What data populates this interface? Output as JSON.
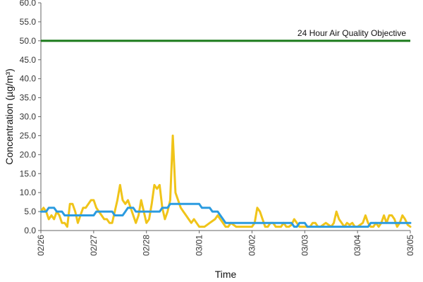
{
  "chart_data": {
    "type": "line",
    "xlabel": "Time",
    "ylabel": "Concentration (µg/m³)",
    "ylim": [
      0,
      60
    ],
    "y_ticks": [
      "0.0",
      "5.0",
      "10.0",
      "15.0",
      "20.0",
      "25.0",
      "30.0",
      "35.0",
      "40.0",
      "45.0",
      "50.0",
      "55.0",
      "60.0"
    ],
    "x_ticks": [
      "02/26",
      "02/27",
      "02/28",
      "03/01",
      "03/02",
      "03/03",
      "03/04",
      "03/05"
    ],
    "grid": false,
    "objective": {
      "label": "24 Hour Air Quality Objective",
      "value": 50,
      "color": "#1a7a1a"
    },
    "series": [
      {
        "color": "#f0c419",
        "points": [
          [
            0.0,
            5
          ],
          [
            0.05,
            6
          ],
          [
            0.1,
            5
          ],
          [
            0.15,
            3
          ],
          [
            0.2,
            4
          ],
          [
            0.25,
            3
          ],
          [
            0.3,
            5
          ],
          [
            0.35,
            4
          ],
          [
            0.4,
            2
          ],
          [
            0.45,
            2
          ],
          [
            0.5,
            1
          ],
          [
            0.55,
            7
          ],
          [
            0.6,
            7
          ],
          [
            0.65,
            5
          ],
          [
            0.7,
            2
          ],
          [
            0.75,
            4
          ],
          [
            0.8,
            6
          ],
          [
            0.85,
            6
          ],
          [
            0.9,
            7
          ],
          [
            0.95,
            8
          ],
          [
            1.0,
            8
          ],
          [
            1.05,
            6
          ],
          [
            1.1,
            5
          ],
          [
            1.15,
            4
          ],
          [
            1.2,
            3
          ],
          [
            1.25,
            3
          ],
          [
            1.3,
            2
          ],
          [
            1.35,
            2
          ],
          [
            1.4,
            5
          ],
          [
            1.45,
            8
          ],
          [
            1.5,
            12
          ],
          [
            1.55,
            8
          ],
          [
            1.6,
            7
          ],
          [
            1.65,
            8
          ],
          [
            1.7,
            6
          ],
          [
            1.75,
            4
          ],
          [
            1.8,
            2
          ],
          [
            1.85,
            4
          ],
          [
            1.9,
            8
          ],
          [
            1.95,
            5
          ],
          [
            2.0,
            2
          ],
          [
            2.05,
            3
          ],
          [
            2.1,
            7
          ],
          [
            2.15,
            12
          ],
          [
            2.2,
            11
          ],
          [
            2.25,
            12
          ],
          [
            2.3,
            6
          ],
          [
            2.35,
            3
          ],
          [
            2.4,
            5
          ],
          [
            2.45,
            8
          ],
          [
            2.5,
            25
          ],
          [
            2.55,
            10
          ],
          [
            2.6,
            8
          ],
          [
            2.65,
            6
          ],
          [
            2.7,
            5
          ],
          [
            2.75,
            4
          ],
          [
            2.8,
            3
          ],
          [
            2.85,
            2
          ],
          [
            2.9,
            3
          ],
          [
            2.95,
            2
          ],
          [
            3.0,
            1
          ],
          [
            3.05,
            1
          ],
          [
            3.1,
            1
          ],
          [
            3.15,
            1.5
          ],
          [
            3.2,
            2
          ],
          [
            3.25,
            2.5
          ],
          [
            3.3,
            3
          ],
          [
            3.35,
            4
          ],
          [
            3.4,
            3
          ],
          [
            3.45,
            2
          ],
          [
            3.5,
            1
          ],
          [
            3.55,
            1
          ],
          [
            3.6,
            2
          ],
          [
            3.65,
            1.5
          ],
          [
            3.7,
            1
          ],
          [
            3.75,
            1
          ],
          [
            3.8,
            1
          ],
          [
            3.85,
            1
          ],
          [
            3.9,
            1
          ],
          [
            4.0,
            1
          ],
          [
            4.05,
            2
          ],
          [
            4.1,
            6
          ],
          [
            4.15,
            5
          ],
          [
            4.2,
            3
          ],
          [
            4.25,
            1
          ],
          [
            4.3,
            1
          ],
          [
            4.35,
            2
          ],
          [
            4.4,
            2
          ],
          [
            4.45,
            1
          ],
          [
            4.5,
            1
          ],
          [
            4.55,
            1
          ],
          [
            4.6,
            2
          ],
          [
            4.65,
            1
          ],
          [
            4.7,
            1
          ],
          [
            4.75,
            1.5
          ],
          [
            4.8,
            3
          ],
          [
            4.85,
            2
          ],
          [
            4.9,
            1
          ],
          [
            4.95,
            1
          ],
          [
            5.0,
            1
          ],
          [
            5.05,
            1
          ],
          [
            5.1,
            1
          ],
          [
            5.15,
            2
          ],
          [
            5.2,
            2
          ],
          [
            5.25,
            1
          ],
          [
            5.3,
            1
          ],
          [
            5.35,
            1.5
          ],
          [
            5.4,
            2
          ],
          [
            5.45,
            1.5
          ],
          [
            5.5,
            1
          ],
          [
            5.55,
            2
          ],
          [
            5.6,
            5
          ],
          [
            5.65,
            3
          ],
          [
            5.7,
            2
          ],
          [
            5.75,
            1
          ],
          [
            5.8,
            2
          ],
          [
            5.85,
            1.5
          ],
          [
            5.9,
            2
          ],
          [
            5.95,
            1
          ],
          [
            6.0,
            1
          ],
          [
            6.05,
            1.5
          ],
          [
            6.1,
            2
          ],
          [
            6.15,
            4
          ],
          [
            6.2,
            2
          ],
          [
            6.25,
            1
          ],
          [
            6.3,
            1
          ],
          [
            6.35,
            2
          ],
          [
            6.4,
            1
          ],
          [
            6.45,
            2
          ],
          [
            6.5,
            4
          ],
          [
            6.55,
            2
          ],
          [
            6.6,
            4
          ],
          [
            6.65,
            4
          ],
          [
            6.7,
            3
          ],
          [
            6.75,
            1
          ],
          [
            6.8,
            2
          ],
          [
            6.85,
            4
          ],
          [
            6.9,
            3
          ],
          [
            6.95,
            1.5
          ],
          [
            7.0,
            1
          ]
        ]
      },
      {
        "color": "#2b9be0",
        "points": [
          [
            0.0,
            5
          ],
          [
            0.1,
            5
          ],
          [
            0.15,
            6
          ],
          [
            0.25,
            6
          ],
          [
            0.3,
            5
          ],
          [
            0.4,
            5
          ],
          [
            0.45,
            4
          ],
          [
            1.0,
            4
          ],
          [
            1.05,
            5
          ],
          [
            1.35,
            5
          ],
          [
            1.4,
            4
          ],
          [
            1.55,
            4
          ],
          [
            1.6,
            5
          ],
          [
            1.65,
            6
          ],
          [
            1.75,
            6
          ],
          [
            1.8,
            5
          ],
          [
            2.25,
            5
          ],
          [
            2.3,
            6
          ],
          [
            2.4,
            6
          ],
          [
            2.45,
            7
          ],
          [
            3.0,
            7
          ],
          [
            3.05,
            6
          ],
          [
            3.2,
            6
          ],
          [
            3.25,
            5
          ],
          [
            3.35,
            5
          ],
          [
            3.4,
            4
          ],
          [
            3.45,
            3
          ],
          [
            3.5,
            2
          ],
          [
            4.75,
            2
          ],
          [
            4.8,
            1
          ],
          [
            4.85,
            1
          ],
          [
            4.9,
            2
          ],
          [
            5.0,
            2
          ],
          [
            5.05,
            1
          ],
          [
            6.2,
            1
          ],
          [
            6.25,
            2
          ],
          [
            7.0,
            2
          ]
        ]
      }
    ]
  }
}
